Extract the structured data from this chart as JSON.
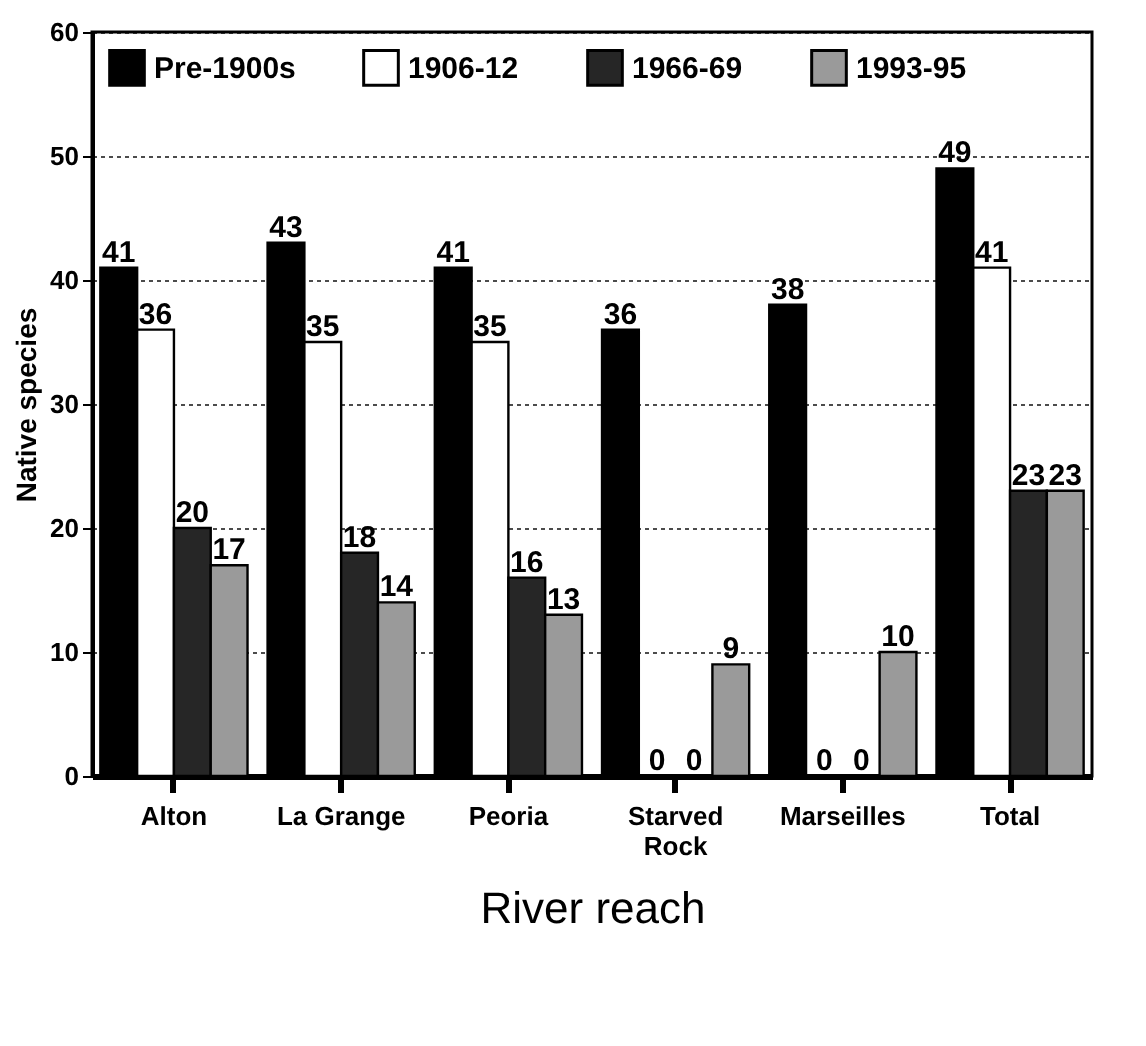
{
  "chart_data": {
    "type": "bar",
    "xlabel": "River reach",
    "ylabel": "Native species",
    "categories": [
      "Alton",
      "La Grange",
      "Peoria",
      "Starved Rock",
      "Marseilles",
      "Total"
    ],
    "series": [
      {
        "name": "Pre-1900s",
        "color": "#000000",
        "values": [
          41,
          43,
          41,
          36,
          38,
          49
        ]
      },
      {
        "name": "1906-12",
        "color": "#ffffff",
        "values": [
          36,
          35,
          35,
          0,
          0,
          41
        ]
      },
      {
        "name": "1966-69",
        "color": "#262626",
        "values": [
          20,
          18,
          16,
          0,
          0,
          23
        ]
      },
      {
        "name": "1993-95",
        "color": "#9a9a9a",
        "values": [
          17,
          14,
          13,
          9,
          10,
          23
        ]
      }
    ],
    "ylim": [
      0,
      60
    ],
    "yticks": [
      0,
      10,
      20,
      30,
      40,
      50,
      60
    ],
    "grid": "y",
    "legend": "top",
    "data_labels": true
  }
}
